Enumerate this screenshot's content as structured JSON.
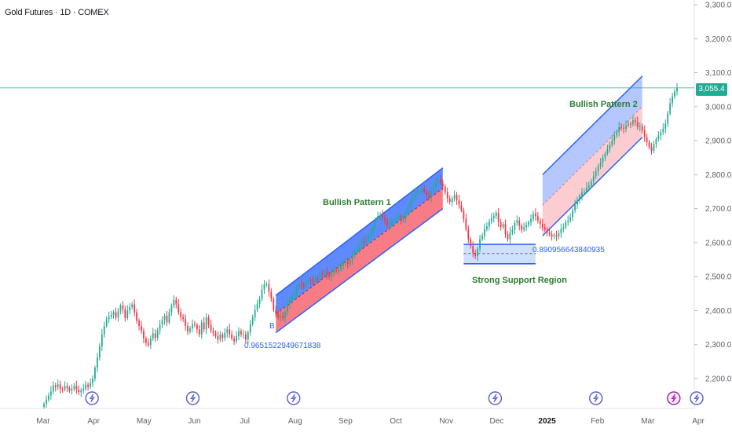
{
  "header": {
    "title": "Gold Futures · 1D · COMEX"
  },
  "last_price": "3,055.4",
  "colors": {
    "up": "#22ab94",
    "down": "#f23645",
    "channel_fill": "#2962ff",
    "channel_lower_fill": "#f23645",
    "support_fill": "#bbd3fb",
    "annotation_green": "#2e7d32",
    "annotation_blue": "#2962ff",
    "axis_text": "#5d606b",
    "last_price_line": "#22ab94"
  },
  "icons": [
    "lightning-icon-1",
    "lightning-icon-2",
    "lightning-icon-3",
    "lightning-icon-4",
    "lightning-icon-5",
    "flash-icon-active",
    "lightning-icon-6"
  ],
  "chart_data": {
    "type": "candlestick",
    "title": "Gold Futures · 1D · COMEX",
    "y_axis": {
      "ticks": [
        "3,300.0",
        "3,200.0",
        "3,100.0",
        "3,000.0",
        "2,900.0",
        "2,800.0",
        "2,700.0",
        "2,600.0",
        "2,500.0",
        "2,400.0",
        "2,300.0",
        "2,200.0"
      ],
      "tick_values": [
        3300,
        3200,
        3100,
        3000,
        2900,
        2800,
        2700,
        2600,
        2500,
        2400,
        2300,
        2200
      ],
      "range": [
        2110,
        3320
      ],
      "position": "right"
    },
    "x_axis": {
      "ticks": [
        "Mar",
        "Apr",
        "May",
        "Jun",
        "Jul",
        "Aug",
        "Sep",
        "Oct",
        "Nov",
        "Dec",
        "2025",
        "Feb",
        "Mar",
        "Apr"
      ],
      "tick_index": [
        0,
        22,
        44,
        66,
        88,
        110,
        132,
        154,
        176,
        198,
        220,
        242,
        264,
        286
      ]
    },
    "last_price": 3055.4,
    "closes": [
      2125,
      2138,
      2150,
      2162,
      2180,
      2175,
      2183,
      2170,
      2168,
      2178,
      2172,
      2165,
      2170,
      2178,
      2168,
      2160,
      2165,
      2170,
      2182,
      2176,
      2187,
      2200,
      2232,
      2262,
      2295,
      2330,
      2355,
      2375,
      2382,
      2388,
      2395,
      2380,
      2398,
      2415,
      2405,
      2378,
      2400,
      2410,
      2418,
      2395,
      2370,
      2355,
      2340,
      2318,
      2305,
      2298,
      2318,
      2333,
      2320,
      2342,
      2358,
      2372,
      2385,
      2365,
      2395,
      2415,
      2432,
      2418,
      2395,
      2382,
      2375,
      2355,
      2338,
      2348,
      2360,
      2358,
      2345,
      2330,
      2365,
      2345,
      2380,
      2358,
      2340,
      2335,
      2325,
      2315,
      2330,
      2320,
      2335,
      2345,
      2330,
      2318,
      2310,
      2325,
      2340,
      2330,
      2330,
      2315,
      2336,
      2360,
      2380,
      2402,
      2420,
      2435,
      2462,
      2478,
      2478,
      2455,
      2435,
      2402,
      2390,
      2380,
      2385,
      2378,
      2395,
      2420,
      2430,
      2445,
      2448,
      2468,
      2480,
      2475,
      2470,
      2485,
      2490,
      2488,
      2485,
      2495,
      2490,
      2510,
      2505,
      2515,
      2505,
      2500,
      2510,
      2520,
      2515,
      2522,
      2530,
      2540,
      2545,
      2538,
      2550,
      2565,
      2572,
      2580,
      2590,
      2605,
      2600,
      2612,
      2620,
      2632,
      2645,
      2668,
      2678,
      2680,
      2672,
      2665,
      2648,
      2655,
      2662,
      2665,
      2672,
      2678,
      2665,
      2670,
      2685,
      2700,
      2720,
      2738,
      2745,
      2748,
      2750,
      2760,
      2750,
      2740,
      2732,
      2755,
      2765,
      2778,
      2785,
      2775,
      2765,
      2748,
      2730,
      2720,
      2730,
      2740,
      2725,
      2710,
      2695,
      2670,
      2640,
      2610,
      2590,
      2570,
      2560,
      2582,
      2610,
      2620,
      2640,
      2648,
      2662,
      2672,
      2678,
      2688,
      2660,
      2645,
      2655,
      2625,
      2610,
      2630,
      2638,
      2658,
      2665,
      2650,
      2638,
      2645,
      2652,
      2660,
      2670,
      2685,
      2678,
      2665,
      2655,
      2645,
      2638,
      2630,
      2625,
      2618,
      2622,
      2618,
      2628,
      2640,
      2645,
      2660,
      2665,
      2675,
      2695,
      2712,
      2725,
      2738,
      2748,
      2750,
      2762,
      2768,
      2780,
      2795,
      2810,
      2825,
      2835,
      2850,
      2862,
      2875,
      2888,
      2900,
      2915,
      2925,
      2940,
      2938,
      2935,
      2945,
      2950,
      2948,
      2960,
      2955,
      2940,
      2942,
      2930,
      2910,
      2895,
      2880,
      2870,
      2890,
      2905,
      2915,
      2925,
      2935,
      2950,
      2980,
      3010,
      3030,
      3045,
      3055.4
    ]
  },
  "annotations": {
    "pattern1_label": "Bullish Pattern 1",
    "pattern2_label": "Bullish Pattern 2",
    "support_label": "Strong Support Region",
    "fib1_value": "0.9651522949671838",
    "fib2_value": "0.890956643840935",
    "pattern1_marker": "B"
  }
}
